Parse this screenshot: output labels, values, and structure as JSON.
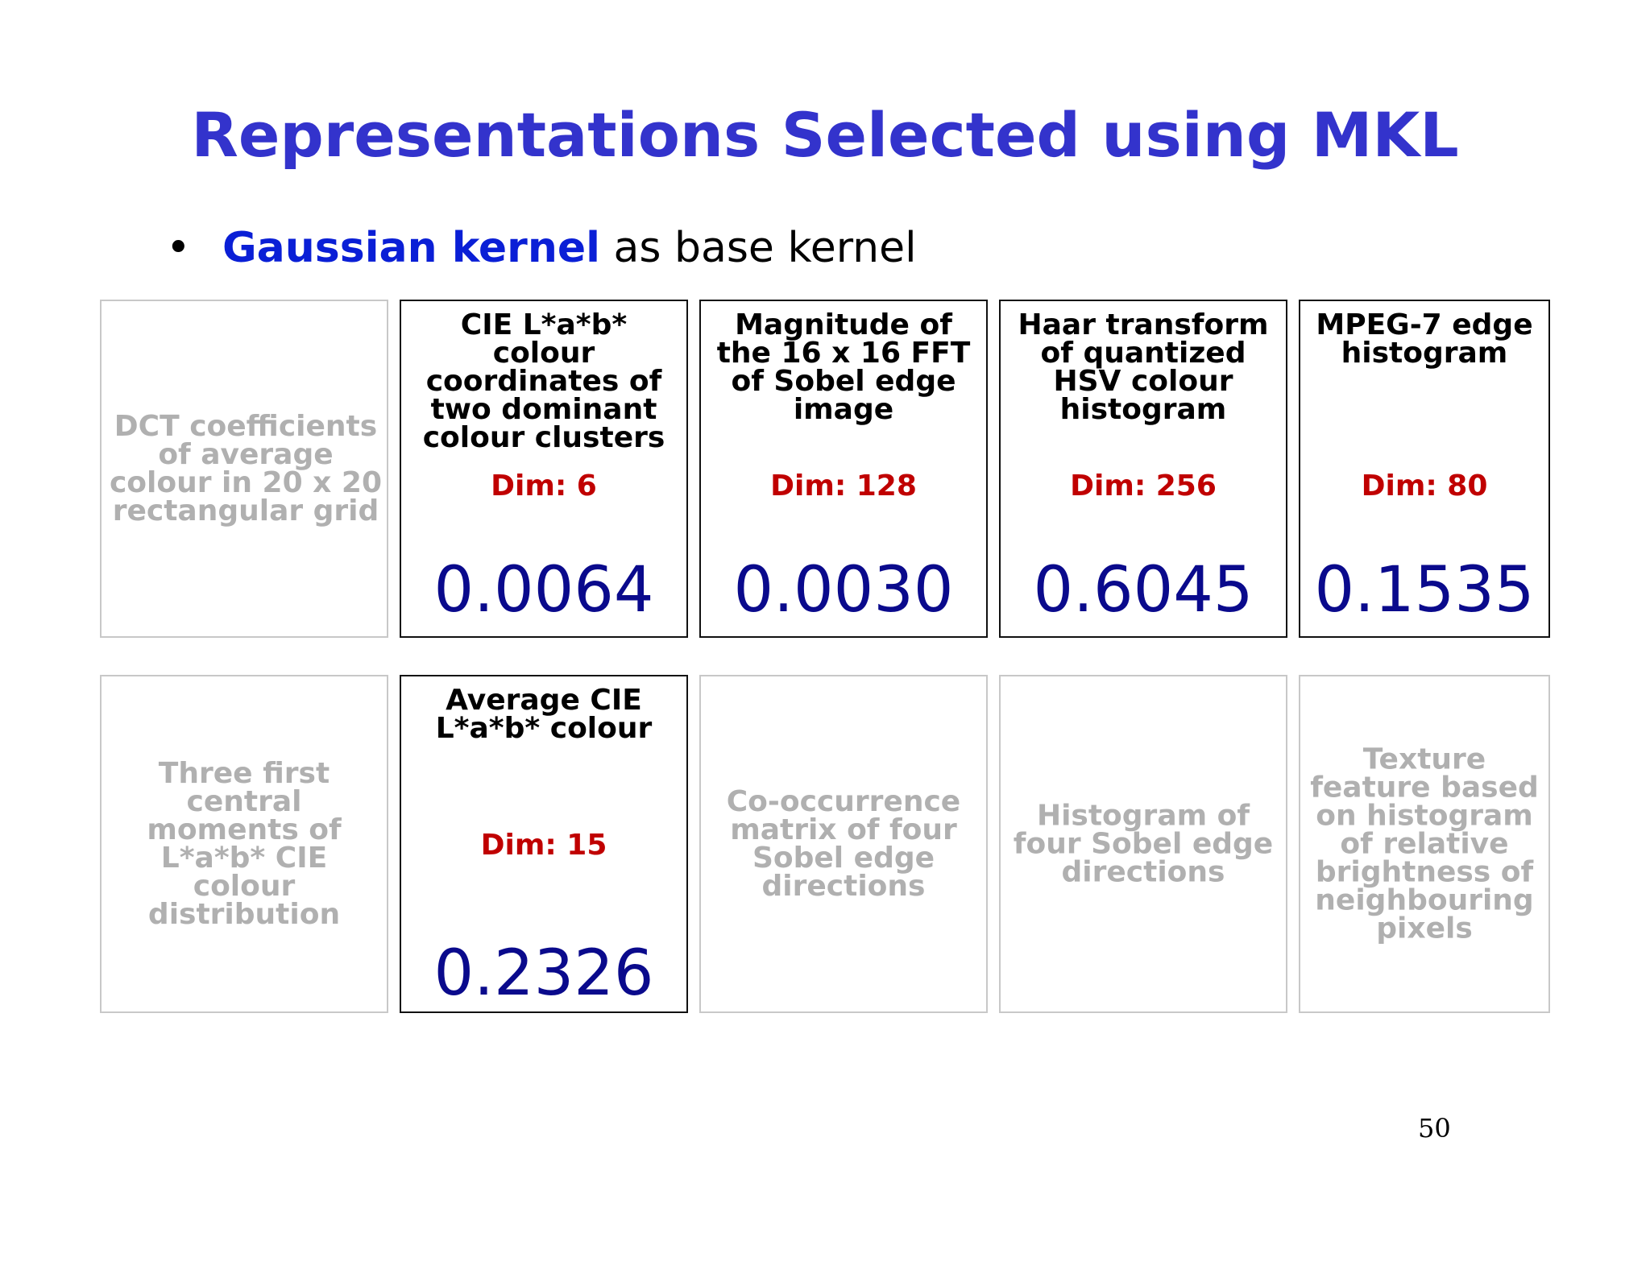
{
  "title": "Representations Selected using MKL",
  "bullet": {
    "symbol": "•",
    "strong_text": "Gaussian kernel",
    "rest_text": " as base kernel"
  },
  "row1": [
    {
      "title": "DCT coefficients of average colour in 20 x 20 rectangular grid",
      "selected": false
    },
    {
      "title": "CIE L*a*b* colour coordinates of two dominant colour clusters",
      "dim": "Dim: 6",
      "weight": "0.0064",
      "selected": true
    },
    {
      "title": "Magnitude of the 16 x 16 FFT of Sobel edge image",
      "dim": "Dim: 128",
      "weight": "0.0030",
      "selected": true
    },
    {
      "title": "Haar transform of quantized HSV colour histogram",
      "dim": "Dim: 256",
      "weight": "0.6045",
      "selected": true
    },
    {
      "title": "MPEG-7 edge histogram",
      "dim": "Dim: 80",
      "weight": "0.1535",
      "selected": true
    }
  ],
  "row2": [
    {
      "title": "Three first central moments of L*a*b* CIE colour distribution",
      "selected": false
    },
    {
      "title": "Average CIE L*a*b* colour",
      "dim": "Dim: 15",
      "weight": "0.2326",
      "selected": true
    },
    {
      "title": "Co-occurrence matrix of four Sobel edge directions",
      "selected": false
    },
    {
      "title": "Histogram of four Sobel edge directions",
      "selected": false
    },
    {
      "title": "Texture feature based on histogram of relative brightness of neighbouring pixels",
      "selected": false
    }
  ],
  "page_number": "50",
  "colors": {
    "title": "#3333cc",
    "bullet_strong": "#0a1fd6",
    "dim": "#c00000",
    "weight": "#0a0a8c",
    "faded_text": "#b0b0b0"
  }
}
